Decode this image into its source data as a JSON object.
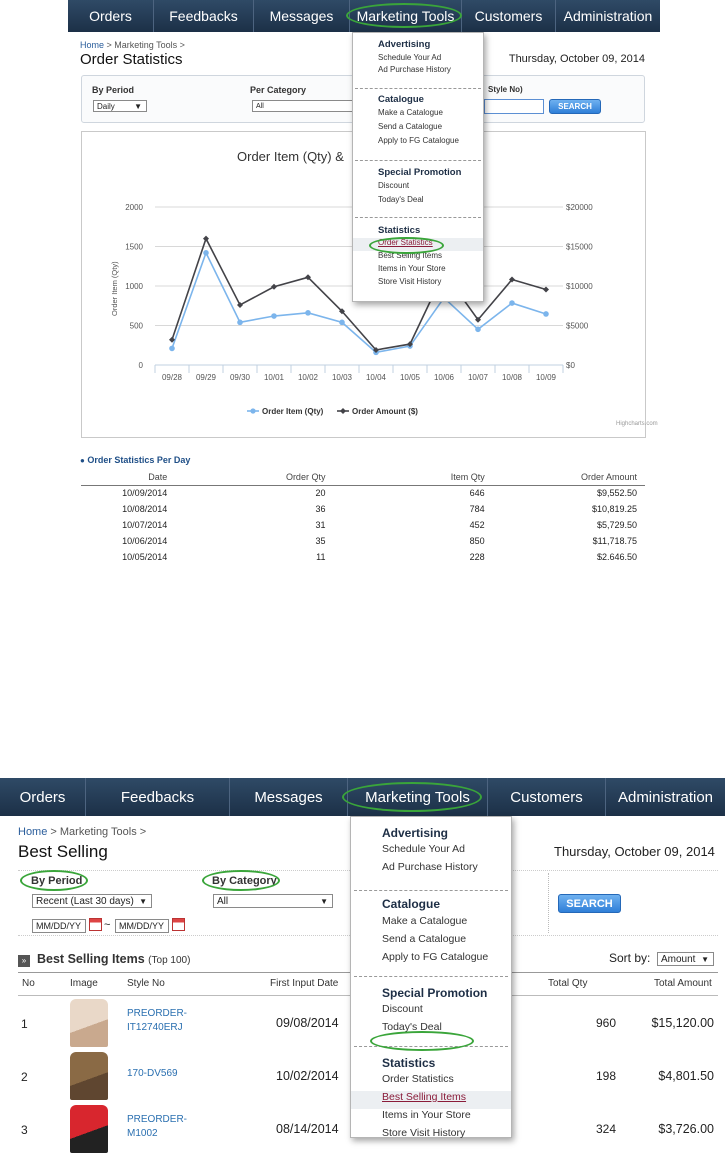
{
  "nav": {
    "items": [
      "Orders",
      "Feedbacks",
      "Messages",
      "Marketing Tools",
      "Customers",
      "Administration"
    ]
  },
  "menu": {
    "sections": [
      {
        "head": "Advertising",
        "items": [
          "Schedule Your Ad",
          "Ad Purchase History"
        ]
      },
      {
        "head": "Catalogue",
        "items": [
          "Make a Catalogue",
          "Send a Catalogue",
          "Apply to FG Catalogue"
        ]
      },
      {
        "head": "Special Promotion",
        "items": [
          "Discount",
          "Today's Deal"
        ]
      },
      {
        "head": "Statistics",
        "items": [
          "Order Statistics",
          "Best Selling Items",
          "Items in Your Store",
          "Store Visit History"
        ]
      }
    ]
  },
  "top": {
    "breadcrumb": "Home > Marketing Tools >",
    "breadcrumb_home": "Home",
    "breadcrumb_rest": " > Marketing Tools >",
    "title": "Order Statistics",
    "date": "Thursday, October 09, 2014",
    "filters": {
      "by_period_label": "By Period",
      "by_period_value": "Daily",
      "per_category_label": "Per Category",
      "per_category_value": "All",
      "style_label": "Style No)",
      "search_label": "SEARCH"
    },
    "chart_title": "Order Item (Qty) &",
    "credit": "Highcharts.com",
    "per_day_title": "Order Statistics Per Day",
    "table": {
      "headers": [
        "Date",
        "Order Qty",
        "Item Qty",
        "Order Amount"
      ],
      "rows": [
        [
          "10/09/2014",
          "20",
          "646",
          "$9,552.50"
        ],
        [
          "10/08/2014",
          "36",
          "784",
          "$10,819.25"
        ],
        [
          "10/07/2014",
          "31",
          "452",
          "$5,729.50"
        ],
        [
          "10/06/2014",
          "35",
          "850",
          "$11,718.75"
        ],
        [
          "10/05/2014",
          "11",
          "228",
          "$2,646.50"
        ]
      ]
    }
  },
  "chart_data": {
    "type": "line",
    "title": "Order Item (Qty) &",
    "ylabel": "Order Item (Qty)",
    "categories": [
      "09/28",
      "09/29",
      "09/30",
      "10/01",
      "10/02",
      "10/03",
      "10/04",
      "10/05",
      "10/06",
      "10/07",
      "10/08",
      "10/09"
    ],
    "y_left_ticks": [
      "0",
      "500",
      "1000",
      "1500",
      "2000"
    ],
    "y_right_ticks": [
      "$0",
      "$5000",
      "$10000",
      "$15000",
      "$20000"
    ],
    "ylim": [
      0,
      2000
    ],
    "y2lim": [
      0,
      20000
    ],
    "series": [
      {
        "name": "Order Item (Qty)",
        "axis": "left",
        "color": "#7cb5ec",
        "values": [
          210,
          1420,
          540,
          620,
          660,
          540,
          160,
          240,
          850,
          452,
          784,
          646
        ]
      },
      {
        "name": "Order Amount ($)",
        "axis": "right",
        "color": "#434348",
        "values": [
          3200,
          16000,
          7600,
          9900,
          11100,
          6800,
          1900,
          2646,
          11718,
          5729,
          10819,
          9552
        ]
      }
    ],
    "grid": true,
    "legend": "bottom-center"
  },
  "bottom": {
    "breadcrumb_home": "Home",
    "breadcrumb_rest": " > Marketing Tools >",
    "title": "Best Selling",
    "date": "Thursday, October 09, 2014",
    "by_period_label": "By Period",
    "by_period_value": "Recent (Last 30 days)",
    "date_from": "MM/DD/YY",
    "tilde": "~",
    "date_to": "MM/DD/YY",
    "by_category_label": "By Category",
    "by_category_value": "All",
    "search_label": "SEARCH",
    "list_title": "Best Selling Items",
    "list_sub": "(Top 100)",
    "sort_label": "Sort by:",
    "sort_value": "Amount",
    "headers": [
      "No",
      "Image",
      "Style No",
      "First Input Date",
      "Total Qty",
      "Total Amount"
    ],
    "rows": [
      {
        "no": "1",
        "style": "PREORDER-IT12740ERJ",
        "style_l1": "PREORDER-",
        "style_l2": "IT12740ERJ",
        "date": "09/08/2014",
        "qty": "960",
        "amount": "$15,120.00"
      },
      {
        "no": "2",
        "style": "170-DV569",
        "style_l1": "170-DV569",
        "style_l2": "",
        "date": "10/02/2014",
        "qty": "198",
        "amount": "$4,801.50"
      },
      {
        "no": "3",
        "style": "PREORDER-M1002",
        "style_l1": "PREORDER-",
        "style_l2": "M1002",
        "date": "08/14/2014",
        "qty": "324",
        "amount": "$3,726.00"
      }
    ]
  },
  "colors": {
    "nav": "#1c3047",
    "accent": "#2f7fd8",
    "highlight_oval": "#3aa53a",
    "link": "#2a5d9b"
  }
}
